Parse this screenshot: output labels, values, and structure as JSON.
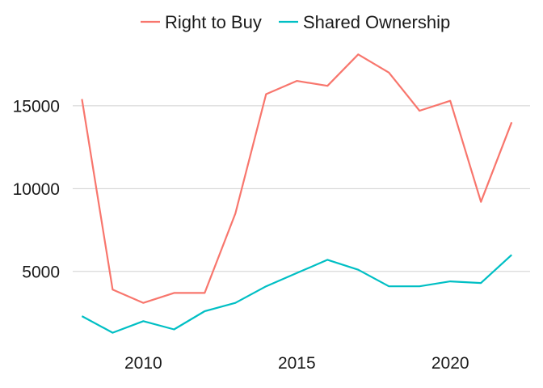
{
  "chart_data": {
    "type": "line",
    "title": "",
    "xlabel": "",
    "ylabel": "",
    "x": [
      2008,
      2009,
      2010,
      2011,
      2012,
      2013,
      2014,
      2015,
      2016,
      2017,
      2018,
      2019,
      2020,
      2021,
      2022
    ],
    "xlim": [
      2007.7,
      2022.6
    ],
    "ylim": [
      550,
      18700
    ],
    "x_ticks": [
      2010,
      2015,
      2020
    ],
    "y_ticks": [
      5000,
      10000,
      15000
    ],
    "grid": "horizontal major",
    "legend": "top",
    "series": [
      {
        "name": "Right to Buy",
        "color": "#F8766D",
        "values": [
          15400,
          3900,
          3100,
          3700,
          3700,
          8500,
          15700,
          16500,
          16200,
          18100,
          17000,
          14700,
          15300,
          9200,
          14000
        ]
      },
      {
        "name": "Shared Ownership",
        "color": "#00BFC4",
        "values": [
          2300,
          1300,
          2000,
          1500,
          2600,
          3100,
          4100,
          4900,
          5700,
          5100,
          4100,
          4100,
          4400,
          4300,
          6000
        ]
      }
    ]
  }
}
